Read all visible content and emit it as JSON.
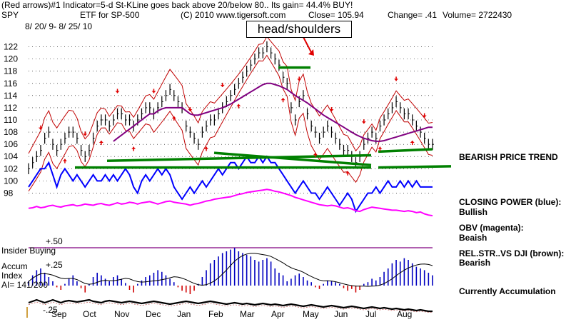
{
  "header": {
    "line1": "(Red arrows)#1 Indicator=5-d St-KLine goes back above 20/below 80.. Its gain= 44.4% BUY!",
    "symbol": "SPY",
    "description": "ETF for SP-500",
    "copyright": "(C) 2010 www.tigersoft.com",
    "close": "Close=  105.94",
    "change": "Change= .41",
    "volume": "Volume= 2722430",
    "date_range": "8/ 20/ 9- 8/ 25/ 10"
  },
  "annotation": {
    "text": "head/shoulders"
  },
  "right_panel": {
    "trend": "BEARISH PRICE TREND",
    "closing_power_label": "CLOSING POWER (blue):",
    "closing_power_value": "Bullish",
    "obv_label": "OBV (magenta):",
    "obv_value": "Beaish",
    "relstr_label": "REL.STR..VS DJI (brown):",
    "relstr_value": "Bearish",
    "accum_state": "Currently Accumulation"
  },
  "lower_panel": {
    "plus50": "+.50",
    "insider": "Insider Buying",
    "accum_line1": "Accum",
    "accum_line2": "Index",
    "ai": "AI= 141/200",
    "plus25": "+.25",
    "minus25": "-.25"
  },
  "chart_data": {
    "type": "line",
    "ylim": [
      97,
      123
    ],
    "yticks": [
      "122",
      "120",
      "118",
      "116",
      "114",
      "112",
      "110",
      "108",
      "106",
      "104",
      "102",
      "100",
      "98"
    ],
    "months": [
      "Sep",
      "Oct",
      "Nov",
      "Dec",
      "Jan",
      "Feb",
      "Mar",
      "Apr",
      "May",
      "Jun",
      "Jul",
      "Aug"
    ],
    "price": [
      102,
      103,
      104,
      105,
      107,
      108,
      106,
      105,
      106,
      107,
      108,
      108,
      107,
      105,
      104,
      105,
      107,
      109,
      110,
      110,
      109,
      110,
      111,
      111,
      110,
      110,
      109,
      110,
      111,
      112,
      112,
      111,
      112,
      113,
      114,
      115,
      114,
      113,
      112,
      109,
      108,
      107,
      106,
      108,
      109,
      110,
      110,
      111,
      112,
      113,
      114,
      115,
      116,
      117,
      118,
      119,
      120,
      121,
      121,
      122,
      121,
      120,
      119,
      117,
      116,
      112,
      110,
      113,
      114,
      111,
      109,
      108,
      107,
      108,
      109,
      108,
      107,
      106,
      105,
      105,
      104,
      103,
      104,
      106,
      107,
      108,
      107,
      109,
      110,
      111,
      112,
      113,
      112,
      111,
      111,
      110,
      109,
      108,
      107,
      106,
      106
    ],
    "ma": [
      null,
      null,
      null,
      null,
      null,
      null,
      null,
      null,
      null,
      null,
      null,
      null,
      null,
      null,
      null,
      null,
      null,
      null,
      null,
      null,
      null,
      106.5,
      107,
      107.5,
      108,
      108.5,
      109,
      109.5,
      110,
      110.5,
      111,
      111,
      111.5,
      111.8,
      112,
      112,
      112,
      112,
      112,
      111.5,
      111,
      110.8,
      110.8,
      111,
      111.2,
      111.4,
      111.6,
      111.8,
      112,
      112.3,
      112.6,
      113,
      113.4,
      113.8,
      114.2,
      114.6,
      115,
      115.4,
      115.8,
      116,
      116,
      115.8,
      115.6,
      115.3,
      115,
      114.5,
      114,
      113.6,
      113.2,
      112.8,
      112.3,
      111.8,
      111.3,
      110.8,
      110.4,
      110,
      109.6,
      109.2,
      108.8,
      108.4,
      108,
      107.6,
      107.3,
      107,
      106.8,
      106.6,
      106.5,
      106.5,
      106.6,
      106.8,
      107,
      107.2,
      107.4,
      107.6,
      107.8,
      108,
      108.2,
      108.4,
      108.6,
      108.8,
      108.8
    ],
    "closing_power": [
      99,
      100,
      101,
      102,
      102,
      103,
      101,
      99,
      101,
      102,
      101,
      100,
      101,
      100,
      99,
      100,
      101,
      100,
      100,
      101,
      100,
      101,
      100,
      101,
      102,
      101,
      99,
      98,
      100,
      101,
      100,
      101,
      102,
      101,
      102,
      101,
      99,
      98,
      97,
      98,
      99,
      98,
      99,
      100,
      99,
      100,
      101,
      102,
      101,
      102,
      103,
      103,
      102,
      103,
      104,
      103,
      103,
      104,
      103,
      104,
      103,
      103,
      102,
      101,
      100,
      99,
      98,
      99,
      100,
      99,
      98,
      98,
      97,
      98,
      99,
      98,
      97,
      96,
      97,
      98,
      97,
      95,
      96,
      97,
      98,
      98,
      99,
      98,
      99,
      100,
      99,
      99,
      100,
      99,
      100,
      99,
      100,
      99,
      99,
      99,
      99
    ],
    "obv": [
      95.5,
      95.6,
      95.8,
      95.6,
      95.7,
      95.9,
      96,
      95.8,
      95.7,
      95.9,
      96,
      96.1,
      95.9,
      96,
      96.2,
      96.1,
      96,
      96.2,
      96.3,
      96.1,
      96,
      96.2,
      96.4,
      96.2,
      96.3,
      96.5,
      96.4,
      96.2,
      96.4,
      96.5,
      96.6,
      96.4,
      96.2,
      96.4,
      96.6,
      96.7,
      96.5,
      96.4,
      96.3,
      96.2,
      96,
      96.2,
      96.3,
      96.5,
      96.7,
      96.8,
      97,
      97.1,
      97.2,
      97.3,
      97.4,
      97.6,
      97.8,
      97.9,
      98.1,
      98.2,
      98.3,
      98.4,
      98.5,
      98.6,
      98.5,
      98.3,
      98.2,
      98,
      97.8,
      97.6,
      97.3,
      97.1,
      96.9,
      96.7,
      96.5,
      96.3,
      96.1,
      96,
      95.9,
      96,
      95.9,
      95.7,
      95.5,
      95.6,
      95.4,
      95.1,
      95,
      95.3,
      95.5,
      95.7,
      95.6,
      95.5,
      95.4,
      95.3,
      95.2,
      95.2,
      95.1,
      95,
      95.1,
      95,
      94.8,
      94.9,
      94.6,
      94.4,
      94.3
    ],
    "accum": [
      0.05,
      0.12,
      0.18,
      0.2,
      0.15,
      0.1,
      0.05,
      -0.02,
      -0.05,
      0.02,
      0.08,
      0.12,
      0.05,
      -0.03,
      -0.08,
      0.02,
      0.1,
      0.15,
      0.12,
      0.08,
      0.05,
      0.1,
      0.12,
      0.08,
      0.03,
      -0.05,
      -0.08,
      0.02,
      0.06,
      0.1,
      0.12,
      0.15,
      0.18,
      0.16,
      0.12,
      0.08,
      0.04,
      -0.02,
      -0.06,
      -0.08,
      -0.1,
      -0.06,
      0.02,
      0.1,
      0.18,
      0.26,
      0.3,
      0.34,
      0.38,
      0.4,
      0.42,
      0.44,
      0.4,
      0.38,
      0.36,
      0.34,
      0.3,
      0.28,
      0.3,
      0.32,
      0.28,
      0.2,
      0.15,
      0.12,
      0.05,
      0.08,
      0.12,
      0.14,
      0.1,
      0.06,
      0.04,
      -0.02,
      -0.04,
      0.02,
      0.06,
      0.05,
      0.04,
      0.02,
      -0.03,
      -0.06,
      -0.04,
      -0.08,
      -0.05,
      0.02,
      0.04,
      0.08,
      0.06,
      0.1,
      0.16,
      0.2,
      0.26,
      0.3,
      0.28,
      0.32,
      0.3,
      0.26,
      0.22,
      0.2,
      0.18,
      0.15,
      0.12
    ],
    "relstr": [
      0.4,
      0.5,
      0.6,
      0.5,
      0.4,
      0.5,
      0.6,
      0.5,
      0.4,
      0.5,
      0.55,
      0.5,
      0.45,
      0.5,
      0.55,
      0.6,
      0.5,
      0.45,
      0.4,
      0.5,
      0.55,
      0.5,
      0.45,
      0.4,
      0.45,
      0.5,
      0.45,
      0.4,
      0.35,
      0.4,
      0.45,
      0.5,
      0.45,
      0.4,
      0.35,
      0.3,
      0.35,
      0.4,
      0.45,
      0.5,
      0.45,
      0.4,
      0.35,
      0.4,
      0.45,
      0.5,
      0.45,
      0.4,
      0.35,
      0.3,
      0.35,
      0.4,
      0.35,
      0.3,
      0.35,
      0.3,
      0.25,
      0.3,
      0.35,
      0.3,
      0.25,
      0.3,
      0.25,
      0.2,
      0.25,
      0.3,
      0.25,
      0.2,
      0.15,
      0.2,
      0.25,
      0.2,
      0.15,
      0.1,
      0.15,
      0.2,
      0.15,
      0.1,
      0.05,
      0.1,
      0.15,
      0.1,
      0.05,
      0.0,
      0.05,
      0.1,
      0.05,
      0.0,
      0.05,
      0.0,
      -0.05,
      0.0,
      -0.05,
      -0.1,
      -0.05,
      -0.1,
      -0.15,
      -0.1,
      -0.15,
      -0.2,
      -0.2
    ]
  }
}
